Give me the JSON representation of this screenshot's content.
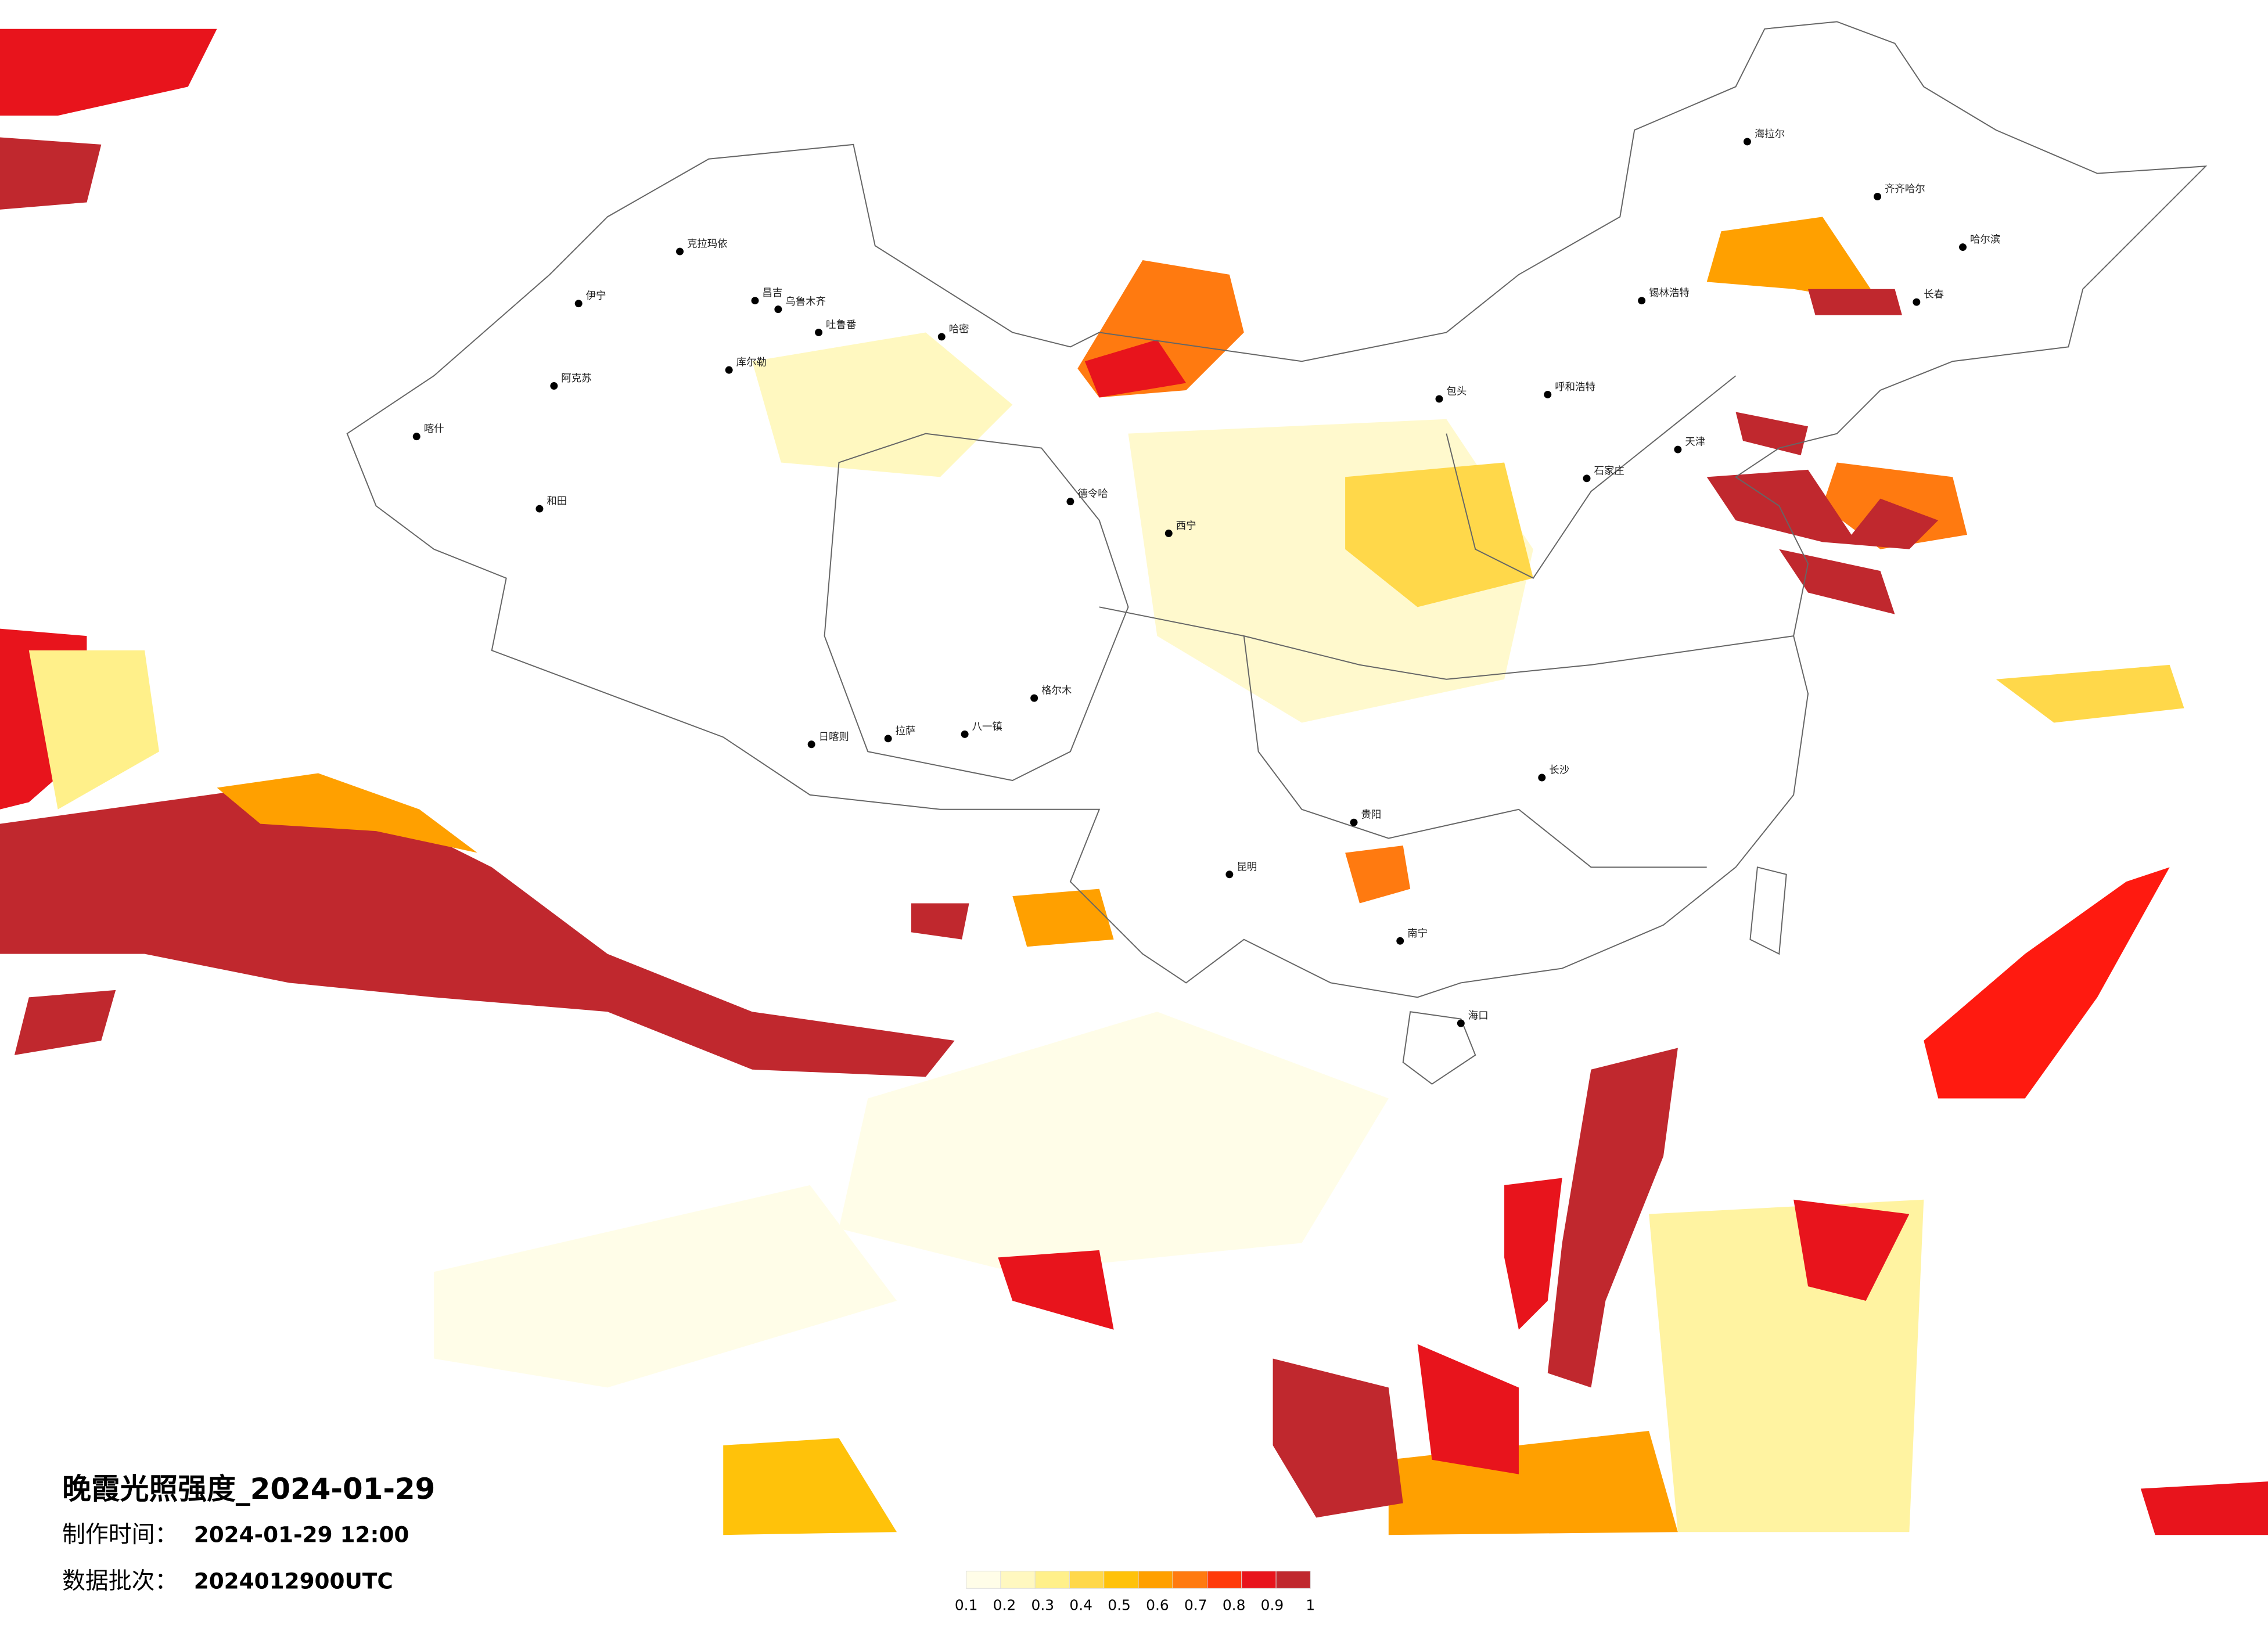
{
  "title": "晚霞光照强度_2024-01-29",
  "info": [
    {
      "label": "制作时间：",
      "value": "2024-01-29 12:00"
    },
    {
      "label": "数据批次：",
      "value": "2024012900UTC"
    }
  ],
  "cities": [
    "克拉玛依",
    "伊宁",
    "昌吉",
    "乌鲁木齐",
    "吐鲁番",
    "哈密",
    "库尔勒",
    "阿克苏",
    "喀什",
    "和田",
    "德令哈",
    "日喀则",
    "拉萨",
    "八一镇",
    "海拉尔",
    "齐齐哈尔",
    "哈尔滨",
    "长春",
    "锡林浩特",
    "呼和浩特",
    "包头",
    "石家庄",
    "天津",
    "西宁",
    "贵阳",
    "昆明",
    "南宁",
    "长沙",
    "海口",
    "格尔木"
  ],
  "legend": {
    "colors": [
      "#fffde8",
      "#fff8c0",
      "#fff08a",
      "#ffd84a",
      "#ffc20a",
      "#ffa000",
      "#ff7a10",
      "#ff3a0a",
      "#e8141c",
      "#c0282e"
    ],
    "ticks": [
      0.1,
      0.2,
      0.3,
      0.4,
      0.5,
      0.6,
      0.7,
      0.8,
      0.9,
      1
    ]
  }
}
